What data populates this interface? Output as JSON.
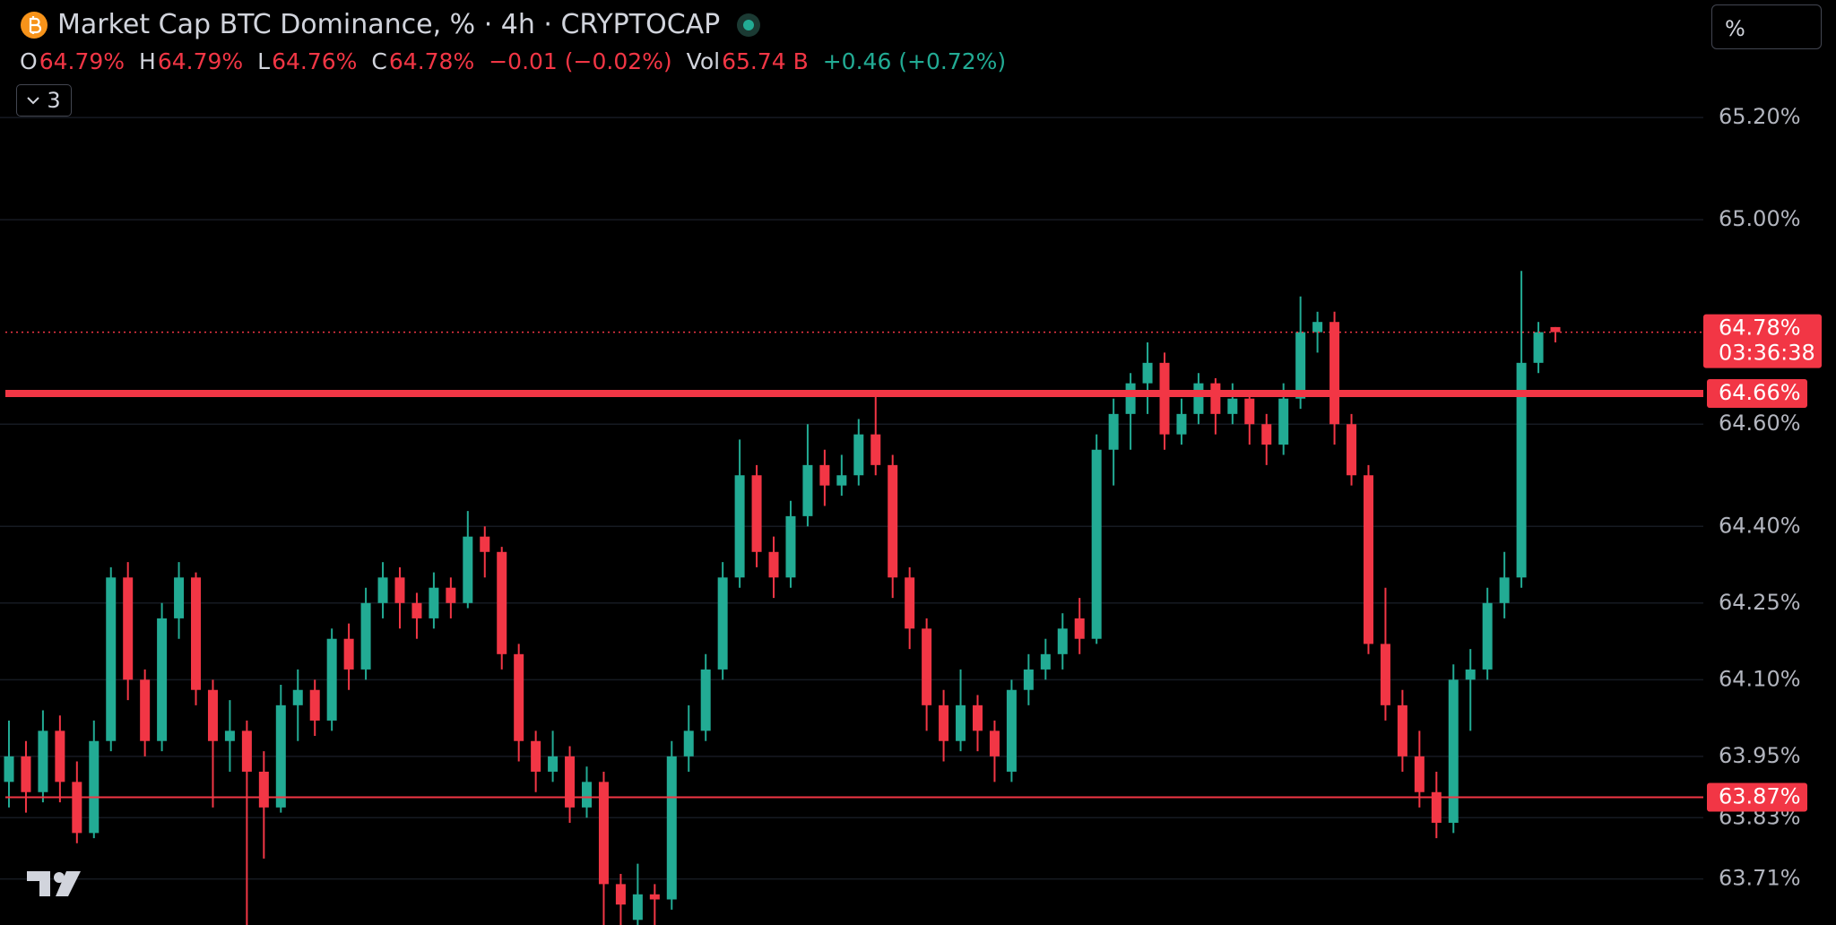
{
  "chart_data": {
    "type": "candlestick",
    "title": "Market Cap BTC Dominance, % · 4h · CRYPTOCAP",
    "legend": [
      {
        "key": "O",
        "value": "64.79%"
      },
      {
        "key": "H",
        "value": "64.79%"
      },
      {
        "key": "L",
        "value": "64.76%"
      },
      {
        "key": "C",
        "value": "64.78%"
      }
    ],
    "change": "−0.01 (−0.02%)",
    "volume": {
      "key": "Vol",
      "value": "65.74 B",
      "change": "+0.46 (+0.72%)"
    },
    "indicator_count": 3,
    "scale_button": "%",
    "up_color": "#22ab94",
    "down_color": "#f23645",
    "ylim": [
      63.62,
      65.43
    ],
    "yticks": [
      {
        "value": 65.2,
        "label": "65.20%"
      },
      {
        "value": 65.0,
        "label": "65.00%"
      },
      {
        "value": 64.6,
        "label": "64.60%"
      },
      {
        "value": 64.4,
        "label": "64.40%"
      },
      {
        "value": 64.25,
        "label": "64.25%"
      },
      {
        "value": 64.1,
        "label": "64.10%"
      },
      {
        "value": 63.95,
        "label": "63.95%"
      },
      {
        "value": 63.83,
        "label": "63.83%"
      },
      {
        "value": 63.71,
        "label": "63.71%"
      }
    ],
    "last_price": {
      "value": 64.78,
      "label": "64.78%",
      "countdown": "03:36:38"
    },
    "hlines": [
      {
        "value": 64.66,
        "label": "64.66%"
      },
      {
        "value": 63.87,
        "label": "63.87%"
      }
    ],
    "candles": [
      [
        63.9,
        64.02,
        63.85,
        63.95
      ],
      [
        63.95,
        63.98,
        63.84,
        63.88
      ],
      [
        63.88,
        64.04,
        63.86,
        64.0
      ],
      [
        64.0,
        64.03,
        63.86,
        63.9
      ],
      [
        63.9,
        63.94,
        63.78,
        63.8
      ],
      [
        63.8,
        64.02,
        63.79,
        63.98
      ],
      [
        63.98,
        64.32,
        63.96,
        64.3
      ],
      [
        64.3,
        64.33,
        64.06,
        64.1
      ],
      [
        64.1,
        64.12,
        63.95,
        63.98
      ],
      [
        63.98,
        64.25,
        63.96,
        64.22
      ],
      [
        64.22,
        64.33,
        64.18,
        64.3
      ],
      [
        64.3,
        64.31,
        64.05,
        64.08
      ],
      [
        64.08,
        64.1,
        63.85,
        63.98
      ],
      [
        63.98,
        64.06,
        63.92,
        64.0
      ],
      [
        64.0,
        64.02,
        63.62,
        63.92
      ],
      [
        63.92,
        63.96,
        63.75,
        63.85
      ],
      [
        63.85,
        64.09,
        63.84,
        64.05
      ],
      [
        64.05,
        64.12,
        63.98,
        64.08
      ],
      [
        64.08,
        64.1,
        63.99,
        64.02
      ],
      [
        64.02,
        64.2,
        64.0,
        64.18
      ],
      [
        64.18,
        64.21,
        64.08,
        64.12
      ],
      [
        64.12,
        64.28,
        64.1,
        64.25
      ],
      [
        64.25,
        64.33,
        64.22,
        64.3
      ],
      [
        64.3,
        64.32,
        64.2,
        64.25
      ],
      [
        64.25,
        64.27,
        64.18,
        64.22
      ],
      [
        64.22,
        64.31,
        64.2,
        64.28
      ],
      [
        64.28,
        64.3,
        64.22,
        64.25
      ],
      [
        64.25,
        64.43,
        64.24,
        64.38
      ],
      [
        64.38,
        64.4,
        64.3,
        64.35
      ],
      [
        64.35,
        64.36,
        64.12,
        64.15
      ],
      [
        64.15,
        64.17,
        63.94,
        63.98
      ],
      [
        63.98,
        64.0,
        63.88,
        63.92
      ],
      [
        63.92,
        64.0,
        63.9,
        63.95
      ],
      [
        63.95,
        63.97,
        63.82,
        63.85
      ],
      [
        63.85,
        63.93,
        63.83,
        63.9
      ],
      [
        63.9,
        63.92,
        63.62,
        63.7
      ],
      [
        63.7,
        63.72,
        63.62,
        63.66
      ],
      [
        63.63,
        63.74,
        63.62,
        63.68
      ],
      [
        63.68,
        63.7,
        63.62,
        63.67
      ],
      [
        63.67,
        63.98,
        63.65,
        63.95
      ],
      [
        63.95,
        64.05,
        63.92,
        64.0
      ],
      [
        64.0,
        64.15,
        63.98,
        64.12
      ],
      [
        64.12,
        64.33,
        64.1,
        64.3
      ],
      [
        64.3,
        64.57,
        64.28,
        64.5
      ],
      [
        64.5,
        64.52,
        64.32,
        64.35
      ],
      [
        64.35,
        64.38,
        64.26,
        64.3
      ],
      [
        64.3,
        64.45,
        64.28,
        64.42
      ],
      [
        64.42,
        64.6,
        64.4,
        64.52
      ],
      [
        64.52,
        64.55,
        64.44,
        64.48
      ],
      [
        64.48,
        64.54,
        64.46,
        64.5
      ],
      [
        64.5,
        64.61,
        64.48,
        64.58
      ],
      [
        64.58,
        64.66,
        64.5,
        64.52
      ],
      [
        64.52,
        64.54,
        64.26,
        64.3
      ],
      [
        64.3,
        64.32,
        64.16,
        64.2
      ],
      [
        64.2,
        64.22,
        64.0,
        64.05
      ],
      [
        64.05,
        64.08,
        63.94,
        63.98
      ],
      [
        63.98,
        64.12,
        63.96,
        64.05
      ],
      [
        64.05,
        64.07,
        63.96,
        64.0
      ],
      [
        64.0,
        64.02,
        63.9,
        63.95
      ],
      [
        63.92,
        64.1,
        63.9,
        64.08
      ],
      [
        64.08,
        64.15,
        64.05,
        64.12
      ],
      [
        64.12,
        64.18,
        64.1,
        64.15
      ],
      [
        64.15,
        64.23,
        64.12,
        64.2
      ],
      [
        64.22,
        64.26,
        64.15,
        64.18
      ],
      [
        64.18,
        64.58,
        64.17,
        64.55
      ],
      [
        64.55,
        64.65,
        64.48,
        64.62
      ],
      [
        64.62,
        64.7,
        64.55,
        64.68
      ],
      [
        64.68,
        64.76,
        64.62,
        64.72
      ],
      [
        64.72,
        64.74,
        64.55,
        64.58
      ],
      [
        64.58,
        64.65,
        64.56,
        64.62
      ],
      [
        64.62,
        64.7,
        64.6,
        64.68
      ],
      [
        64.68,
        64.69,
        64.58,
        64.62
      ],
      [
        64.62,
        64.68,
        64.6,
        64.65
      ],
      [
        64.65,
        64.66,
        64.56,
        64.6
      ],
      [
        64.6,
        64.62,
        64.52,
        64.56
      ],
      [
        64.56,
        64.68,
        64.54,
        64.65
      ],
      [
        64.65,
        64.85,
        64.63,
        64.78
      ],
      [
        64.78,
        64.82,
        64.74,
        64.8
      ],
      [
        64.8,
        64.82,
        64.56,
        64.6
      ],
      [
        64.6,
        64.62,
        64.48,
        64.5
      ],
      [
        64.5,
        64.52,
        64.15,
        64.17
      ],
      [
        64.17,
        64.28,
        64.02,
        64.05
      ],
      [
        64.05,
        64.08,
        63.92,
        63.95
      ],
      [
        63.95,
        64.0,
        63.85,
        63.88
      ],
      [
        63.88,
        63.92,
        63.79,
        63.82
      ],
      [
        63.82,
        64.13,
        63.8,
        64.1
      ],
      [
        64.1,
        64.16,
        64.0,
        64.12
      ],
      [
        64.12,
        64.28,
        64.1,
        64.25
      ],
      [
        64.25,
        64.35,
        64.22,
        64.3
      ],
      [
        64.3,
        64.9,
        64.28,
        64.72
      ],
      [
        64.72,
        64.8,
        64.7,
        64.78
      ],
      [
        64.79,
        64.79,
        64.76,
        64.78
      ]
    ]
  }
}
